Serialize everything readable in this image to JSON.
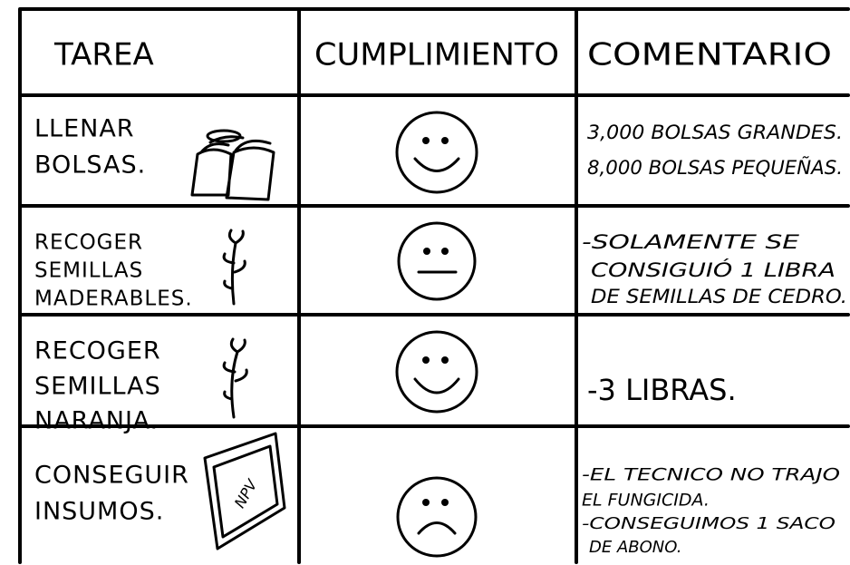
{
  "table": {
    "headers": [
      "TAREA",
      "CUMPLIMIENTO",
      "COMENTARIO"
    ],
    "rows": [
      {
        "task": [
          "LLENAR",
          "BOLSAS."
        ],
        "comment": [
          "3,000 BOLSAS GRANDES.",
          "8,000 BOLSAS PEQUEÑAS."
        ]
      },
      {
        "task": [
          "RECOGER",
          "SEMILLAS",
          "MADERABLES."
        ],
        "comment": [
          "-SOLAMENTE SE",
          "CONSIGUIÓ 1 LIBRA",
          "DE SEMILLAS DE CEDRO."
        ]
      },
      {
        "task": [
          "RECOGER",
          "SEMILLAS",
          "NARANJA."
        ],
        "comment": [
          "-3 LIBRAS."
        ]
      },
      {
        "task": [
          "CONSEGUIR",
          "INSUMOS."
        ],
        "comment": [
          "-EL TECNICO NO TRAJO",
          "EL FUNGICIDA.",
          "-CONSEGUIMOS 1 SACO",
          "DE ABONO."
        ],
        "icon_label": "NPV"
      }
    ]
  }
}
